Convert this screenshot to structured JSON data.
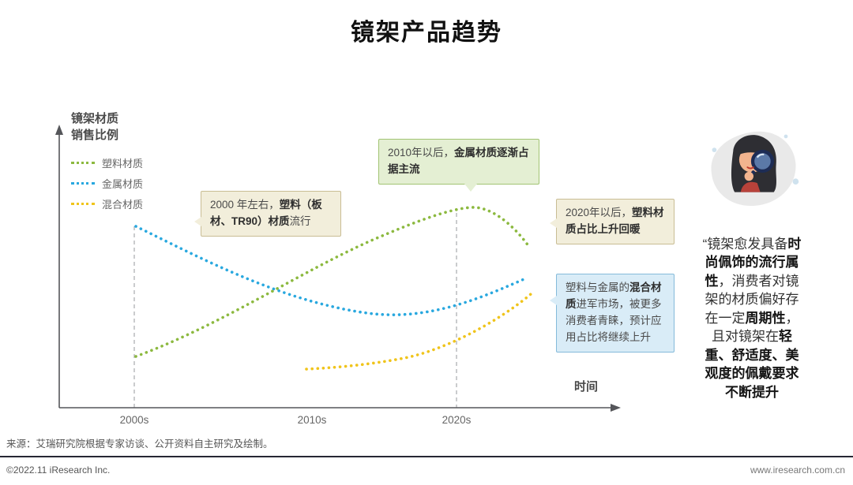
{
  "title": "镜架产品趋势",
  "colors": {
    "plastic_green": "#8cb93f",
    "metal_blue": "#29a8df",
    "mixed_yellow": "#f0c41b",
    "callout_beige_bg": "#f2eedb",
    "callout_beige_border": "#c9bd94",
    "callout_green_bg": "#e4efd3",
    "callout_green_border": "#a2c473",
    "callout_blue_bg": "#d9ecf7",
    "callout_blue_border": "#84bada",
    "axis": "#55565a",
    "footer_line": "#262733"
  },
  "chart": {
    "y_title_line1": "镜架材质",
    "y_title_line2": "销售比例",
    "x_axis_title": "时间",
    "x_ticks": [
      "2000s",
      "2010s",
      "2020s"
    ],
    "legend": [
      {
        "label": "塑料材质",
        "color": "#8cb93f"
      },
      {
        "label": "金属材质",
        "color": "#29a8df"
      },
      {
        "label": "混合材质",
        "color": "#f0c41b"
      }
    ]
  },
  "chart_data": {
    "type": "line",
    "title": "镜架产品趋势",
    "xlabel": "时间",
    "ylabel": "镜架材质销售比例",
    "x_ticks": [
      "2000s",
      "2010s",
      "2020s"
    ],
    "x": [
      2000,
      2005,
      2010,
      2015,
      2020,
      2023
    ],
    "ylim": [
      0,
      100
    ],
    "y_unit": "相对销售比例（示意图，无数值刻度）",
    "grid": false,
    "line_style": "dotted",
    "legend_position": "top-left",
    "series": [
      {
        "name": "塑料材质",
        "color": "#8cb93f",
        "values": [
          25,
          38,
          55,
          72,
          85,
          68
        ]
      },
      {
        "name": "金属材质",
        "color": "#29a8df",
        "values": [
          78,
          60,
          47,
          40,
          43,
          55
        ]
      },
      {
        "name": "混合材质",
        "color": "#f0c41b",
        "values": [
          null,
          null,
          20,
          22,
          30,
          48
        ]
      }
    ],
    "annotations": [
      "2000 年左右，塑料（板材、TR90）材质流行",
      "2010年以后，金属材质逐渐占据主流",
      "2020年以后，塑料材质占比上升回暖",
      "塑料与金属的混合材质进军市场，被更多消费者青睐，预计应用占比将继续上升"
    ]
  },
  "callouts": {
    "c1": {
      "segments": [
        {
          "text": "2000 年左右，",
          "bold": false
        },
        {
          "text": "塑料（板材、TR90）材质",
          "bold": true
        },
        {
          "text": "流行",
          "bold": false
        }
      ]
    },
    "c2": {
      "segments": [
        {
          "text": "2010年以后，",
          "bold": false
        },
        {
          "text": "金属材质逐渐占据主流",
          "bold": true
        }
      ]
    },
    "c3": {
      "segments": [
        {
          "text": "2020年以后，",
          "bold": false
        },
        {
          "text": "塑料材质占比上升回暖",
          "bold": true
        }
      ]
    },
    "c4": {
      "segments": [
        {
          "text": "塑料与金属的",
          "bold": false
        },
        {
          "text": "混合材质",
          "bold": true
        },
        {
          "text": "进军市场，被更多消费者青睐，预计应用占比将继续上升",
          "bold": false
        }
      ]
    }
  },
  "quote": {
    "segments": [
      {
        "text": "“镜架愈发具备",
        "bold": false
      },
      {
        "text": "时尚佩饰的流行属性",
        "bold": true
      },
      {
        "text": "，消费者对镜架的材质偏好存在一定",
        "bold": false
      },
      {
        "text": "周期性",
        "bold": true
      },
      {
        "text": "，且对镜架在",
        "bold": false
      },
      {
        "text": "轻重、舒适度、美观度的佩戴要求不断提升",
        "bold": true
      }
    ]
  },
  "source": "来源：艾瑞研究院根据专家访谈、公开资料自主研究及绘制。",
  "footer": {
    "copyright": "©2022.11 iResearch Inc.",
    "website": "www.iresearch.com.cn"
  }
}
